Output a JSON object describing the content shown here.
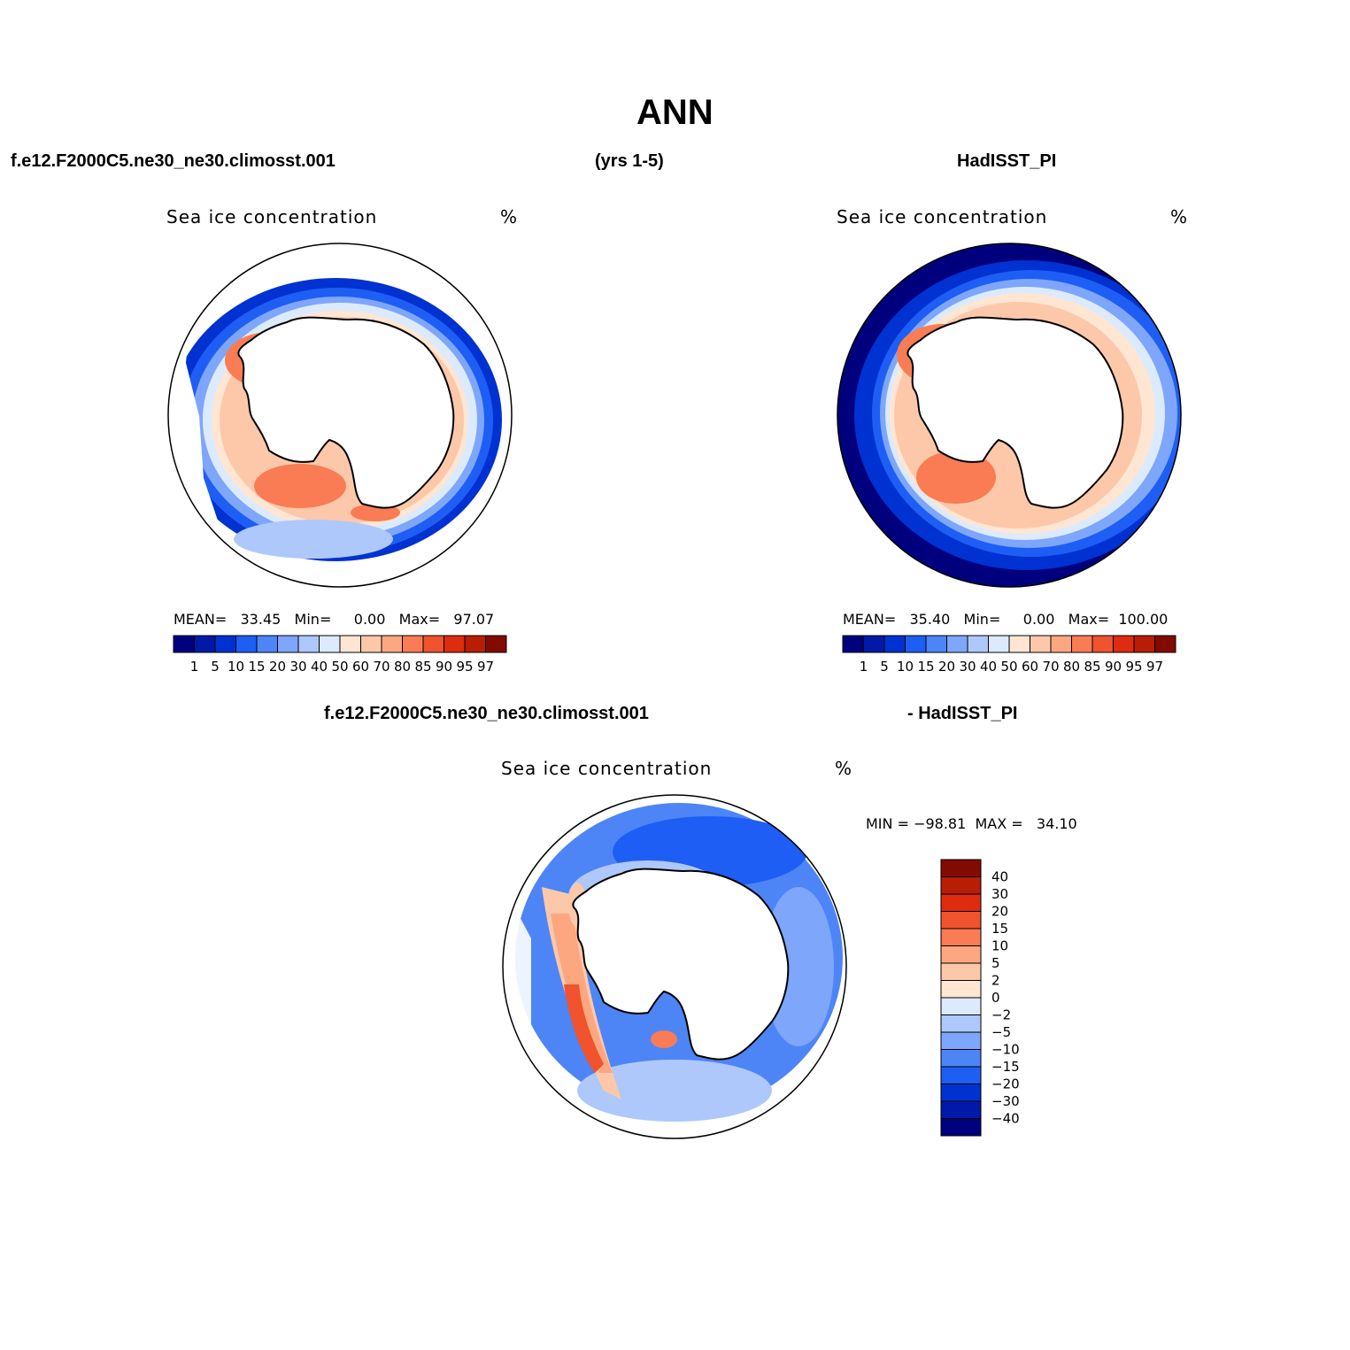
{
  "header": {
    "main_title": "ANN",
    "left_case": "f.e12.F2000C5.ne30_ne30.climosst.001",
    "years": "(yrs 1-5)",
    "right_case": "HadISST_PI",
    "diff_left": "f.e12.F2000C5.ne30_ne30.climosst.001",
    "diff_right": "- HadISST_PI"
  },
  "panels": {
    "model": {
      "title": "Sea ice concentration",
      "units": "%",
      "stats": "MEAN=   33.45   Min=     0.00   Max=   97.07"
    },
    "obs": {
      "title": "Sea ice concentration",
      "units": "%",
      "stats": "MEAN=   35.40   Min=     0.00   Max=  100.00"
    },
    "diff": {
      "title": "Sea ice concentration",
      "units": "%",
      "stats": "MIN = −98.81  MAX =   34.10"
    }
  },
  "colors": {
    "abs_scale": [
      "#00007f",
      "#0019a8",
      "#0032d1",
      "#1e5ef5",
      "#4d85f7",
      "#7ea6fa",
      "#aec8fb",
      "#dceafd",
      "#fee6d2",
      "#fdc8aa",
      "#fca780",
      "#f97c55",
      "#f0532d",
      "#de2c10",
      "#b91d06",
      "#820b00"
    ],
    "diff_scale": [
      "#00007f",
      "#0019a8",
      "#0032d1",
      "#1e5ef5",
      "#4d85f7",
      "#7ea6fa",
      "#aec8fb",
      "#dceafd",
      "#fee6d2",
      "#fdc8aa",
      "#fca780",
      "#f97c55",
      "#f0532d",
      "#de2c10",
      "#b91d06",
      "#820b00"
    ],
    "land": "#ffffff",
    "coast": "#000000"
  },
  "chart_data": [
    {
      "type": "heatmap",
      "title": "Sea ice concentration",
      "units": "%",
      "projection": "south polar stereographic",
      "stats": {
        "mean": 33.45,
        "min": 0.0,
        "max": 97.07
      },
      "colorbar_levels": [
        "1",
        "5",
        "10",
        "15",
        "20",
        "30",
        "40",
        "50",
        "60",
        "70",
        "80",
        "85",
        "90",
        "95",
        "97"
      ]
    },
    {
      "type": "heatmap",
      "title": "Sea ice concentration",
      "units": "%",
      "projection": "south polar stereographic",
      "stats": {
        "mean": 35.4,
        "min": 0.0,
        "max": 100.0
      },
      "colorbar_levels": [
        "1",
        "5",
        "10",
        "15",
        "20",
        "30",
        "40",
        "50",
        "60",
        "70",
        "80",
        "85",
        "90",
        "95",
        "97"
      ]
    },
    {
      "type": "heatmap",
      "title": "Sea ice concentration",
      "units": "%",
      "projection": "south polar stereographic",
      "stats": {
        "min": -98.81,
        "max": 34.1
      },
      "colorbar_levels": [
        "40",
        "30",
        "20",
        "15",
        "10",
        "5",
        "2",
        "0",
        "−2",
        "−5",
        "−10",
        "−15",
        "−20",
        "−30",
        "−40"
      ]
    }
  ]
}
